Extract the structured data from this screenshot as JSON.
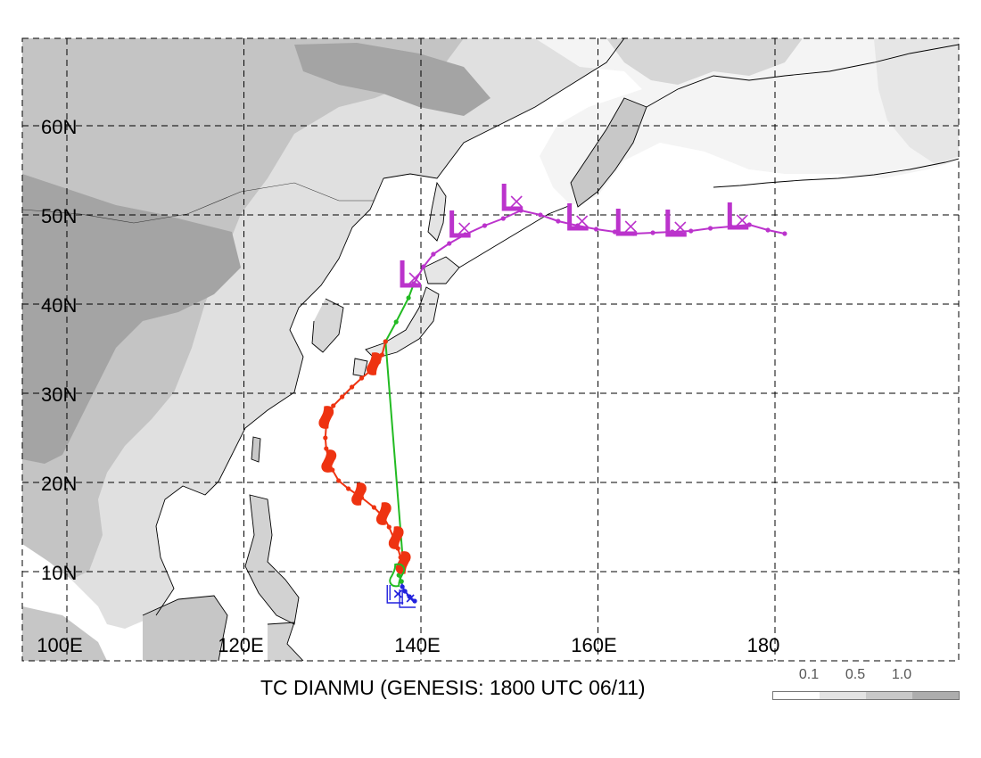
{
  "map": {
    "title": "TC DIANMU (GENESIS: 1800 UTC 06/11)",
    "lat_labels": [
      "60N",
      "50N",
      "40N",
      "30N",
      "20N",
      "10N"
    ],
    "lon_labels": [
      "100E",
      "120E",
      "140E",
      "160E",
      "180"
    ],
    "legend": {
      "ticks": [
        "0.1",
        "0.5",
        "1.0"
      ],
      "shades": [
        "#ffffff",
        "#e3e3e3",
        "#c9c9c9",
        "#adadad"
      ]
    },
    "colors": {
      "land_light": "#e0e0e0",
      "land_mid": "#c4c4c4",
      "land_dark": "#a4a4a4",
      "grid": "#000000",
      "track_depression": "#2222dd",
      "track_storm": "#22bb22",
      "track_typhoon": "#ee3311",
      "track_extratropical": "#bb33cc"
    },
    "track_segments": [
      {
        "stage": "depression",
        "color_key": "track_depression",
        "points": [
          [
            139.3,
            6.7
          ],
          [
            138.7,
            7.2
          ],
          [
            138.2,
            7.8
          ],
          [
            137.9,
            8.3
          ],
          [
            137.8,
            8.9
          ]
        ]
      },
      {
        "stage": "storm",
        "color_key": "track_storm",
        "points": [
          [
            137.8,
            8.9
          ],
          [
            137.5,
            9.6
          ],
          [
            137.8,
            10.3
          ],
          [
            138.0,
            10.8
          ],
          [
            136.0,
            35.8
          ],
          [
            137.2,
            38.0
          ],
          [
            138.6,
            40.7
          ],
          [
            139.2,
            42.3
          ]
        ]
      },
      {
        "stage": "typhoon",
        "color_key": "track_typhoon",
        "points": [
          [
            138.0,
            10.8
          ],
          [
            137.7,
            11.6
          ],
          [
            137.4,
            12.6
          ],
          [
            136.9,
            13.8
          ],
          [
            136.4,
            15.0
          ],
          [
            135.8,
            16.1
          ],
          [
            134.7,
            17.2
          ],
          [
            133.3,
            18.3
          ],
          [
            131.8,
            19.3
          ],
          [
            130.7,
            20.2
          ],
          [
            130.0,
            21.4
          ],
          [
            129.6,
            22.5
          ],
          [
            129.3,
            23.8
          ],
          [
            129.2,
            25.0
          ],
          [
            129.3,
            26.4
          ],
          [
            129.5,
            27.5
          ],
          [
            130.1,
            28.6
          ],
          [
            131.1,
            29.6
          ],
          [
            132.2,
            30.7
          ],
          [
            133.3,
            31.7
          ],
          [
            134.4,
            32.6
          ],
          [
            135.2,
            33.5
          ],
          [
            135.6,
            34.3
          ],
          [
            136.0,
            35.8
          ]
        ]
      },
      {
        "stage": "extratropical",
        "color_key": "track_extratropical",
        "points": [
          [
            139.2,
            42.3
          ],
          [
            140.3,
            44.2
          ],
          [
            141.4,
            45.6
          ],
          [
            143.2,
            46.8
          ],
          [
            145.0,
            47.8
          ],
          [
            147.2,
            48.8
          ],
          [
            149.3,
            49.6
          ],
          [
            151.3,
            50.5
          ],
          [
            153.5,
            50.0
          ],
          [
            155.5,
            49.3
          ],
          [
            157.7,
            48.8
          ],
          [
            159.8,
            48.4
          ],
          [
            161.9,
            48.1
          ],
          [
            164.0,
            47.9
          ],
          [
            166.2,
            48.0
          ],
          [
            168.4,
            48.1
          ],
          [
            170.5,
            48.2
          ],
          [
            172.7,
            48.5
          ],
          [
            175.0,
            48.7
          ],
          [
            177.1,
            48.9
          ],
          [
            179.2,
            48.3
          ],
          [
            181.1,
            47.9
          ]
        ]
      }
    ],
    "symbols": [
      {
        "type": "low",
        "lon": 139.2,
        "lat": 42.3
      },
      {
        "type": "low",
        "lon": 144.8,
        "lat": 47.9
      },
      {
        "type": "low",
        "lon": 150.7,
        "lat": 50.9
      },
      {
        "type": "low",
        "lon": 158.1,
        "lat": 48.7
      },
      {
        "type": "low",
        "lon": 163.6,
        "lat": 48.1
      },
      {
        "type": "low",
        "lon": 169.2,
        "lat": 48.0
      },
      {
        "type": "low",
        "lon": 176.2,
        "lat": 48.8
      },
      {
        "type": "typhoon",
        "lon": 138.0,
        "lat": 11.0
      },
      {
        "type": "typhoon",
        "lon": 137.2,
        "lat": 13.8
      },
      {
        "type": "typhoon",
        "lon": 135.8,
        "lat": 16.5
      },
      {
        "type": "typhoon",
        "lon": 133.0,
        "lat": 18.7
      },
      {
        "type": "typhoon",
        "lon": 129.6,
        "lat": 22.4
      },
      {
        "type": "typhoon",
        "lon": 129.3,
        "lat": 27.3
      },
      {
        "type": "typhoon",
        "lon": 134.7,
        "lat": 33.3
      },
      {
        "type": "storm",
        "lon": 137.3,
        "lat": 9.6
      },
      {
        "type": "depression",
        "lon": 136.8,
        "lat": 7.3
      },
      {
        "type": "depression",
        "lon": 138.2,
        "lat": 6.8
      }
    ]
  }
}
